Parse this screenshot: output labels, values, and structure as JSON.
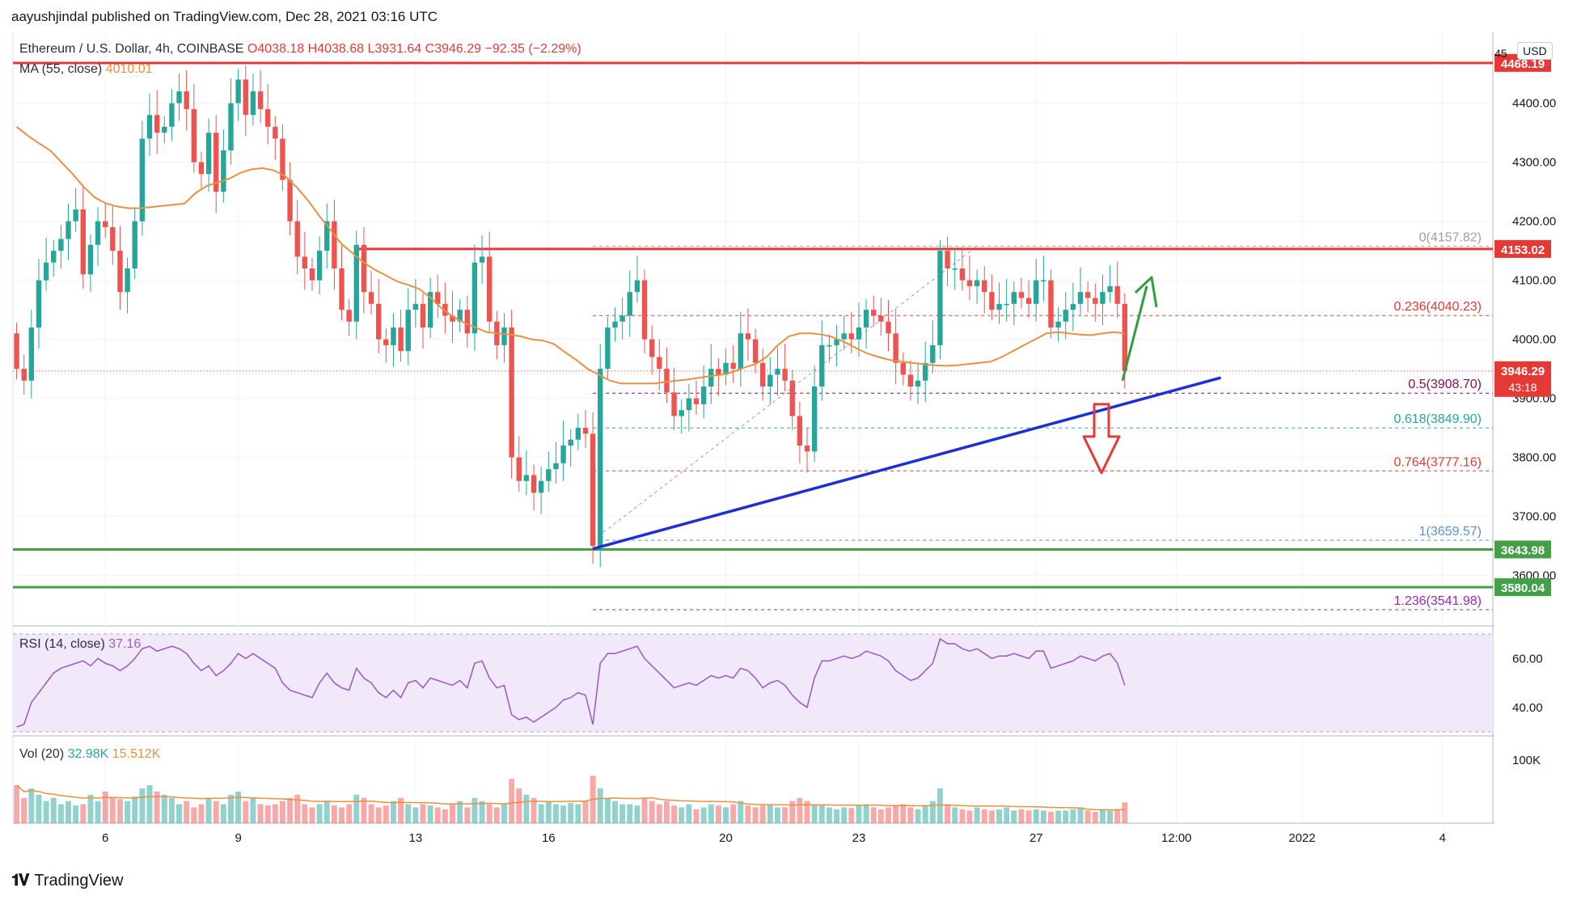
{
  "header": {
    "publisher_line": "aayushjindal published on TradingView.com, Dec 28, 2021 03:16 UTC"
  },
  "legend": {
    "symbol": "Ethereum / U.S. Dollar, 4h, COINBASE",
    "open": "O4038.18",
    "high": "H4038.68",
    "low": "L3931.64",
    "close": "C3946.29",
    "change": "−92.35 (−2.29%)",
    "ma_label": "MA (55, close)",
    "ma_value": "4010.01",
    "rsi_label": "RSI (14, close)",
    "rsi_value": "37.16",
    "vol_label": "Vol (20)",
    "vol_value": "32.98K",
    "vol_ma_value": "15.512K"
  },
  "price_scale": {
    "currency_button": "USD",
    "top_partial": "45",
    "ticks": [
      "4400.00",
      "4300.00",
      "4200.00",
      "4100.00",
      "4000.00",
      "3900.00",
      "3800.00",
      "3700.00",
      "3600.00"
    ],
    "tick_values": [
      4400,
      4300,
      4200,
      4100,
      4000,
      3900,
      3800,
      3700,
      3600
    ],
    "rsi_ticks": [
      "60.00",
      "40.00"
    ],
    "vol_tick": "100K"
  },
  "level_tags": [
    {
      "value": 4468.19,
      "label": "4468.19",
      "color": "#e53935"
    },
    {
      "value": 4153.02,
      "label": "4153.02",
      "color": "#e53935"
    },
    {
      "value": 3643.98,
      "label": "3643.98",
      "color": "#43a047"
    },
    {
      "value": 3580.04,
      "label": "3580.04",
      "color": "#43a047"
    }
  ],
  "last_price": {
    "value": 3946.29,
    "label": "3946.29",
    "countdown": "43:18",
    "color": "#e53935"
  },
  "fib_levels": [
    {
      "ratio_label": "0(4157.82)",
      "value": 4157.82,
      "color": "#9e9e9e"
    },
    {
      "ratio_label": "0.236(4040.23)",
      "value": 4040.23,
      "color": "#e53935"
    },
    {
      "ratio_label": "0.5(3908.70)",
      "value": 3908.7,
      "color": "#880e4f"
    },
    {
      "ratio_label": "0.618(3849.90)",
      "value": 3849.9,
      "color": "#26a69a"
    },
    {
      "ratio_label": "0.764(3777.16)",
      "value": 3777.16,
      "color": "#e53935"
    },
    {
      "ratio_label": "1(3659.57)",
      "value": 3659.57,
      "color": "#5c8ed6"
    },
    {
      "ratio_label": "1.236(3541.98)",
      "value": 3541.98,
      "color": "#9c27b0"
    }
  ],
  "time_axis": [
    "6",
    "9",
    "13",
    "16",
    "20",
    "23",
    "27",
    "12:00",
    "2022",
    "4"
  ],
  "time_axis_bars": [
    12,
    30,
    54,
    72,
    96,
    114,
    138,
    157,
    174,
    193
  ],
  "colors": {
    "up": "#26a69a",
    "down": "#ef5350",
    "ma": "#e8913f",
    "trendline": "#1d2fd6",
    "arrow_up": "#2e9e3e",
    "arrow_down": "#e53935",
    "rsi": "#9c5fc7",
    "rsi_band": "#f1e8fa"
  },
  "chart_data": {
    "type": "candlestick",
    "title": "Ethereum / U.S. Dollar, 4h, COINBASE",
    "xlabel": "",
    "ylabel": "",
    "ylim": [
      3520,
      4520
    ],
    "grid": true,
    "closes": [
      3950,
      3930,
      4020,
      4100,
      4130,
      4150,
      4170,
      4200,
      4220,
      4110,
      4160,
      4200,
      4190,
      4150,
      4080,
      4120,
      4200,
      4340,
      4380,
      4350,
      4360,
      4400,
      4420,
      4390,
      4300,
      4280,
      4350,
      4250,
      4320,
      4400,
      4440,
      4380,
      4420,
      4390,
      4360,
      4340,
      4270,
      4200,
      4140,
      4120,
      4100,
      4150,
      4200,
      4120,
      4050,
      4030,
      4160,
      4080,
      4060,
      4000,
      3990,
      4020,
      3980,
      4050,
      4060,
      4020,
      4080,
      4060,
      4040,
      4030,
      4050,
      4010,
      4130,
      4140,
      4030,
      3990,
      4020,
      3800,
      3760,
      3770,
      3740,
      3760,
      3780,
      3790,
      3820,
      3830,
      3850,
      3840,
      3650,
      3950,
      4020,
      4030,
      4040,
      4080,
      4100,
      4000,
      3970,
      3950,
      3910,
      3870,
      3880,
      3900,
      3890,
      3920,
      3950,
      3940,
      3960,
      3950,
      4010,
      4000,
      3960,
      3920,
      3940,
      3950,
      3930,
      3870,
      3820,
      3810,
      3920,
      3990,
      3990,
      4000,
      4010,
      4000,
      4020,
      4050,
      4040,
      4030,
      4010,
      3960,
      3940,
      3920,
      3930,
      3960,
      3990,
      4150,
      4120,
      4120,
      4100,
      4090,
      4100,
      4080,
      4050,
      4060,
      4060,
      4080,
      4070,
      4060,
      4100,
      4100,
      4020,
      4030,
      4050,
      4060,
      4080,
      4070,
      4060,
      4080,
      4090,
      4060,
      3946.29
    ],
    "ma55": [
      4360,
      4345,
      4332,
      4320,
      4300,
      4280,
      4258,
      4240,
      4230,
      4225,
      4222,
      4222,
      4224,
      4226,
      4228,
      4230,
      4248,
      4260,
      4266,
      4272,
      4282,
      4288,
      4290,
      4286,
      4276,
      4258,
      4236,
      4210,
      4186,
      4162,
      4146,
      4130,
      4118,
      4108,
      4098,
      4092,
      4085,
      4070,
      4052,
      4038,
      4028,
      4020,
      4012,
      4010,
      4008,
      4005,
      4000,
      3998,
      3992,
      3978,
      3965,
      3950,
      3940,
      3930,
      3925,
      3925,
      3925,
      3925,
      3928,
      3930,
      3932,
      3935,
      3938,
      3940,
      3945,
      3952,
      3958,
      3970,
      3990,
      4005,
      4010,
      4010,
      4008,
      4003,
      3995,
      3985,
      3976,
      3970,
      3965,
      3962,
      3960,
      3958,
      3956,
      3955,
      3956,
      3958,
      3960,
      3962,
      3970,
      3980,
      3990,
      4000,
      4010,
      4012,
      4010,
      4008,
      4007,
      4010,
      4012,
      4010
    ],
    "rsi": [
      32,
      33,
      42,
      46,
      50,
      54,
      56,
      57,
      58,
      59,
      57,
      60,
      58,
      57,
      55,
      57,
      60,
      64,
      65,
      63,
      64,
      65,
      64,
      62,
      58,
      55,
      57,
      53,
      55,
      58,
      62,
      60,
      62,
      60,
      58,
      56,
      50,
      47,
      46,
      45,
      44,
      50,
      54,
      50,
      48,
      47,
      56,
      52,
      50,
      46,
      44,
      47,
      44,
      50,
      51,
      48,
      52,
      51,
      50,
      49,
      51,
      48,
      58,
      59,
      52,
      48,
      49,
      37,
      35,
      36,
      34,
      36,
      38,
      40,
      43,
      44,
      46,
      45,
      33,
      58,
      62,
      62,
      63,
      64,
      65,
      60,
      57,
      54,
      51,
      48,
      49,
      50,
      49,
      51,
      53,
      52,
      53,
      52,
      56,
      55,
      52,
      48,
      50,
      51,
      49,
      45,
      42,
      40,
      52,
      59,
      59,
      60,
      61,
      60,
      61,
      63,
      62,
      61,
      59,
      55,
      53,
      51,
      52,
      55,
      58,
      68,
      66,
      66,
      64,
      63,
      64,
      62,
      60,
      61,
      61,
      62,
      61,
      60,
      63,
      63,
      56,
      57,
      58,
      59,
      61,
      60,
      59,
      61,
      62,
      58,
      49
    ],
    "volume": [
      60,
      40,
      55,
      45,
      35,
      40,
      30,
      35,
      28,
      30,
      45,
      35,
      50,
      40,
      38,
      35,
      42,
      55,
      60,
      50,
      45,
      40,
      30,
      35,
      25,
      30,
      40,
      35,
      30,
      45,
      50,
      35,
      40,
      30,
      28,
      30,
      35,
      40,
      45,
      30,
      25,
      30,
      35,
      28,
      25,
      30,
      45,
      40,
      30,
      25,
      28,
      35,
      40,
      30,
      25,
      30,
      28,
      25,
      22,
      30,
      35,
      25,
      40,
      35,
      30,
      25,
      30,
      70,
      55,
      45,
      40,
      30,
      35,
      30,
      28,
      32,
      30,
      35,
      75,
      55,
      40,
      35,
      30,
      30,
      28,
      40,
      35,
      30,
      35,
      28,
      25,
      30,
      22,
      25,
      30,
      28,
      25,
      30,
      35,
      28,
      25,
      28,
      30,
      25,
      25,
      35,
      40,
      35,
      30,
      28,
      25,
      22,
      25,
      24,
      28,
      30,
      25,
      22,
      25,
      28,
      30,
      25,
      22,
      28,
      35,
      55,
      30,
      25,
      22,
      20,
      25,
      22,
      20,
      22,
      25,
      20,
      22,
      20,
      22,
      20,
      18,
      20,
      20,
      22,
      25,
      20,
      18,
      22,
      20,
      22,
      33
    ]
  }
}
